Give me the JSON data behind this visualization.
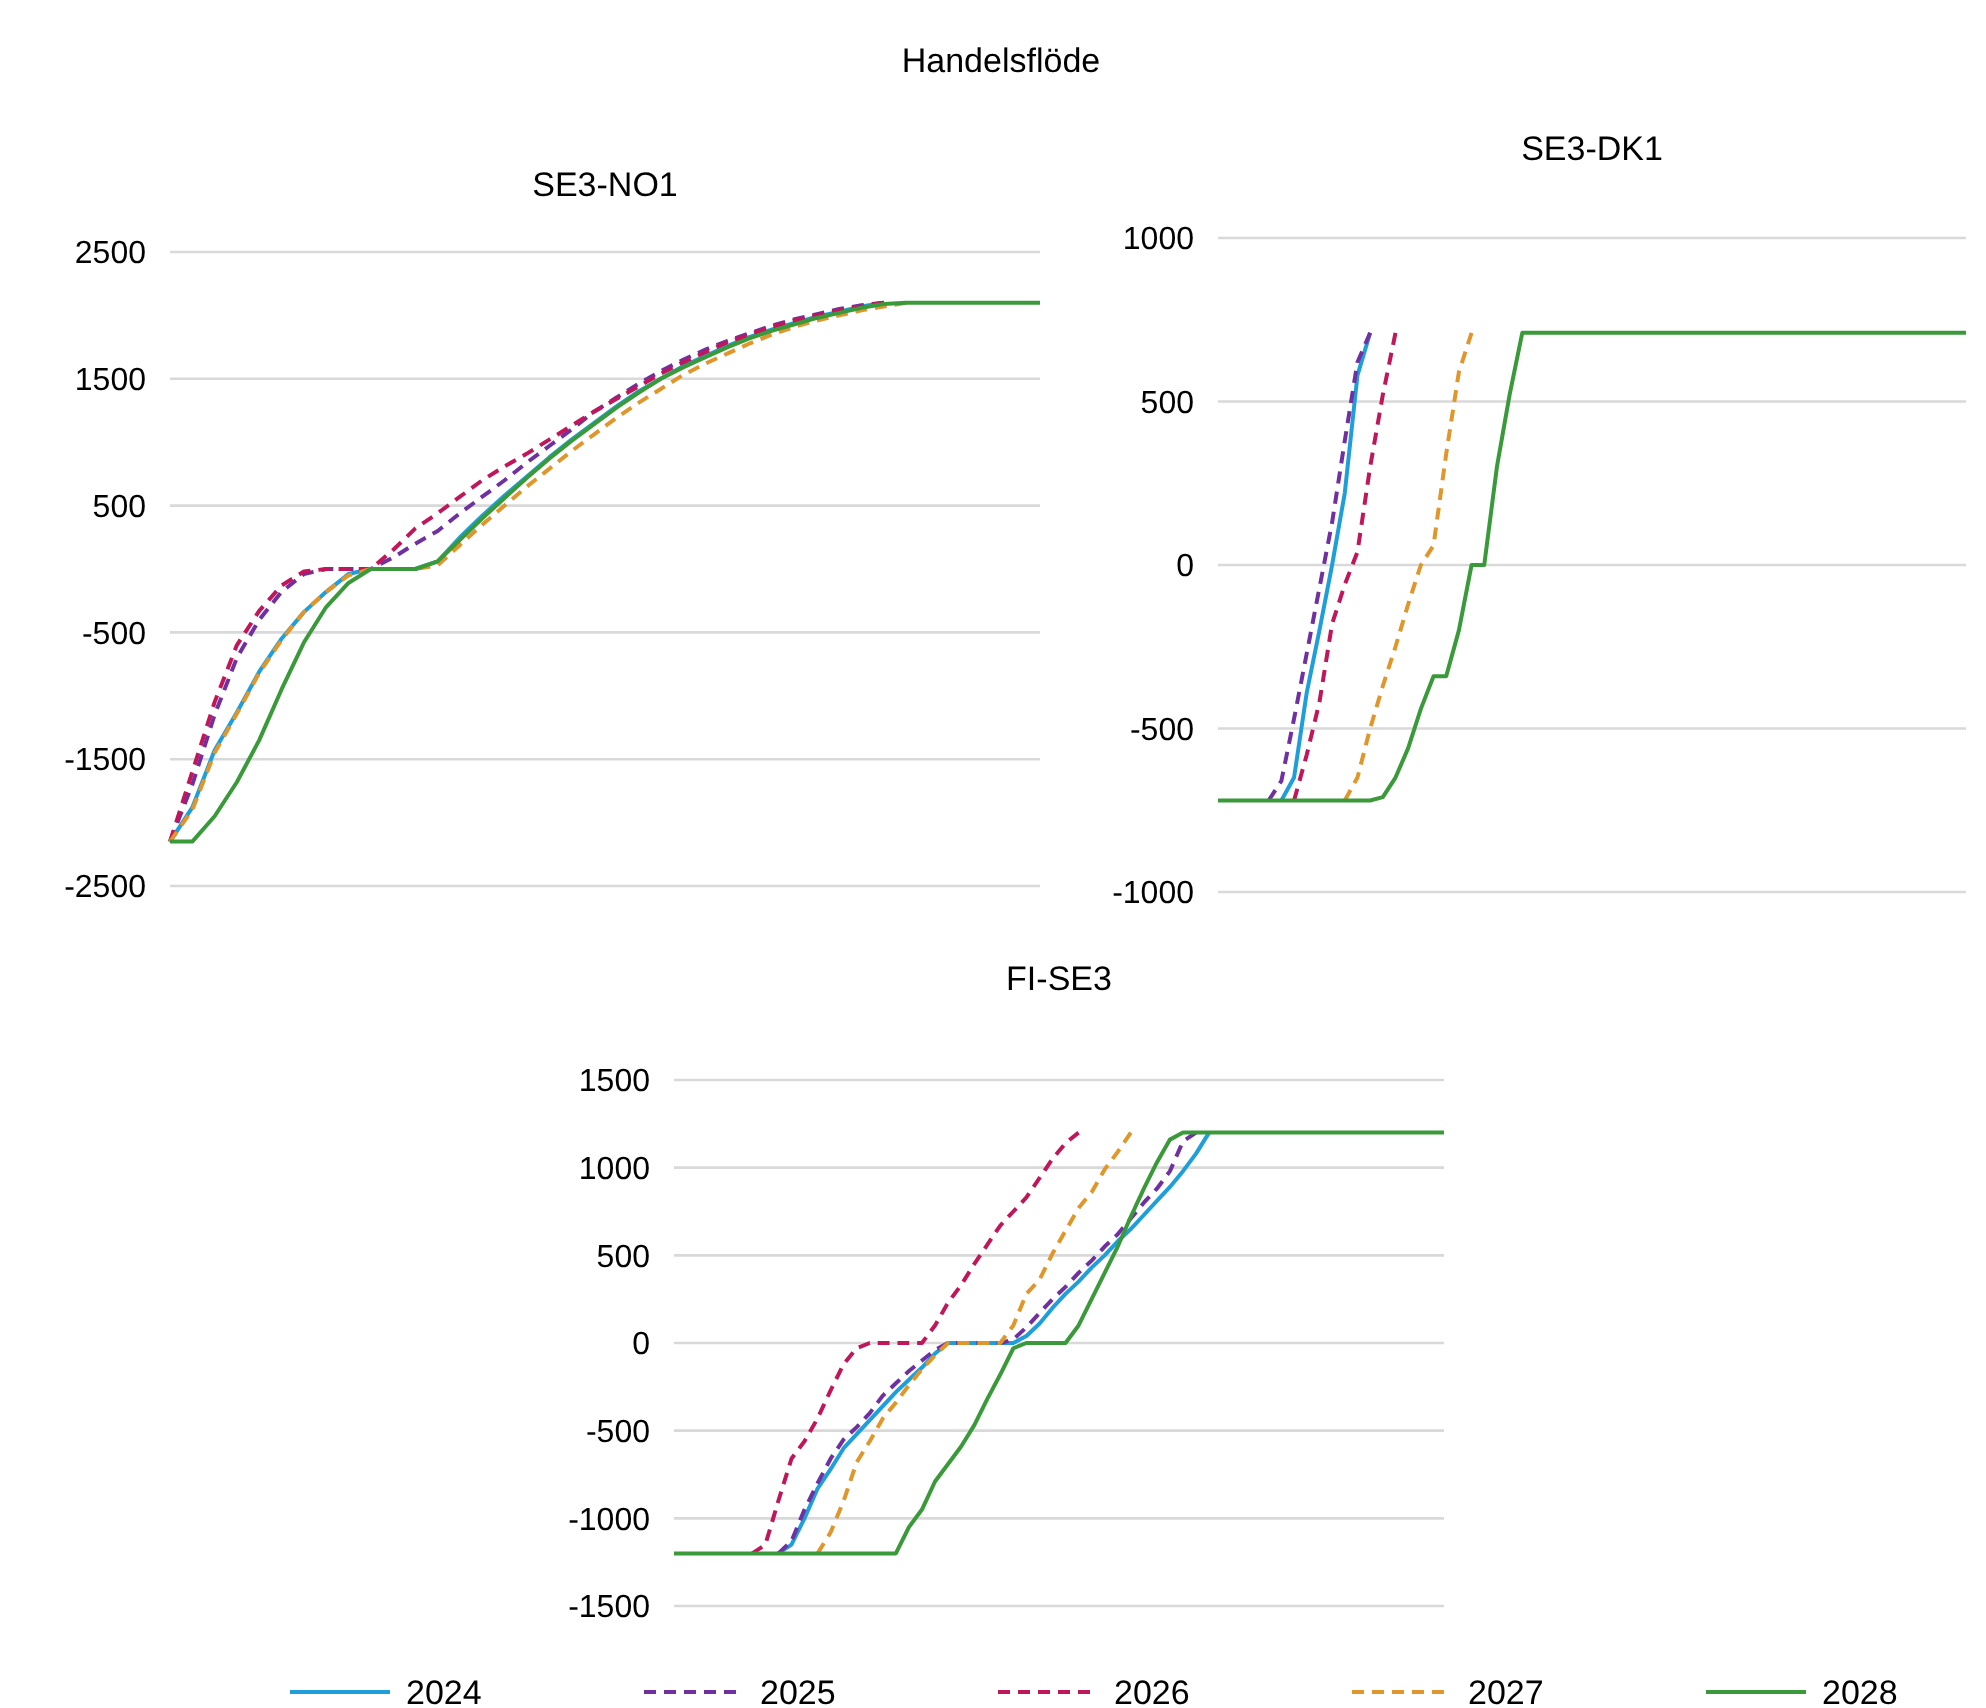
{
  "chart_data": [
    {
      "type": "line",
      "title": "SE3-NO1",
      "annotations": [
        "Handelsflöde"
      ],
      "categories": [
        null,
        null,
        null,
        null,
        null,
        null,
        null,
        null,
        null,
        null,
        null,
        null,
        null,
        null,
        null,
        null,
        null,
        null,
        null,
        null,
        null,
        null,
        null,
        null,
        null,
        null,
        null,
        null,
        null,
        null,
        null,
        null,
        null,
        null,
        null,
        null,
        null,
        null,
        null,
        null
      ],
      "ylim": [
        -2500,
        2500
      ],
      "yticks": [
        -2500,
        -1500,
        -500,
        500,
        1500,
        2500
      ],
      "grid": "y",
      "tick_labels": "y",
      "legend": false,
      "series": [
        {
          "color": "#1f9fd9",
          "line_style": "solid",
          "values": [
            -2150,
            -1880,
            -1430,
            -1130,
            -810,
            -550,
            -340,
            -180,
            -40,
            0,
            0,
            0,
            60,
            250,
            420,
            580,
            730,
            880,
            1020,
            1150,
            1280,
            1400,
            1500,
            1600,
            1680,
            1760,
            1830,
            1890,
            1940,
            1990,
            2030,
            2070,
            2100,
            null,
            null,
            null,
            null,
            null,
            null,
            null
          ]
        },
        {
          "color": "#7030a0",
          "line_style": "dashed",
          "values": [
            -2150,
            -1700,
            -1150,
            -700,
            -400,
            -180,
            -40,
            0,
            0,
            0,
            90,
            200,
            300,
            440,
            570,
            700,
            840,
            970,
            1100,
            1240,
            1350,
            1460,
            1560,
            1650,
            1730,
            1800,
            1860,
            1920,
            1970,
            2010,
            2050,
            2080,
            2100,
            null,
            null,
            null,
            null,
            null,
            null,
            null
          ]
        },
        {
          "color": "#c0175a",
          "line_style": "dashed",
          "values": [
            -2150,
            -1600,
            -1050,
            -600,
            -330,
            -130,
            -20,
            0,
            0,
            0,
            150,
            320,
            440,
            570,
            700,
            810,
            910,
            1020,
            1130,
            1240,
            1340,
            1440,
            1540,
            1630,
            1710,
            1790,
            1850,
            1910,
            1960,
            2000,
            2040,
            2070,
            2100,
            null,
            null,
            null,
            null,
            null,
            null,
            null
          ]
        },
        {
          "color": "#e0962a",
          "line_style": "dashed",
          "values": [
            -2150,
            -1900,
            -1450,
            -1140,
            -820,
            -560,
            -340,
            -180,
            -50,
            0,
            0,
            0,
            30,
            190,
            350,
            500,
            650,
            790,
            930,
            1060,
            1190,
            1310,
            1420,
            1530,
            1620,
            1700,
            1780,
            1850,
            1910,
            1960,
            2000,
            2040,
            2070,
            2100,
            null,
            null,
            null,
            null,
            null,
            null
          ]
        },
        {
          "color": "#3a9a3a",
          "line_style": "solid",
          "values": [
            -2150,
            -2150,
            -1950,
            -1680,
            -1350,
            -950,
            -580,
            -300,
            -110,
            0,
            0,
            0,
            60,
            230,
            400,
            560,
            720,
            870,
            1010,
            1140,
            1270,
            1390,
            1500,
            1590,
            1670,
            1750,
            1820,
            1880,
            1930,
            1980,
            2020,
            2060,
            2090,
            2100,
            2100,
            2100,
            2100,
            2100,
            2100,
            2100
          ]
        }
      ]
    },
    {
      "type": "line",
      "title": "SE3-DK1",
      "categories": [
        null,
        null,
        null,
        null,
        null,
        null,
        null,
        null,
        null,
        null,
        null,
        null,
        null,
        null,
        null,
        null,
        null,
        null,
        null,
        null,
        null,
        null,
        null,
        null,
        null,
        null,
        null,
        null,
        null,
        null,
        null,
        null,
        null,
        null,
        null,
        null,
        null,
        null,
        null,
        null,
        null,
        null,
        null,
        null,
        null,
        null,
        null,
        null,
        null,
        null,
        null,
        null,
        null,
        null,
        null,
        null,
        null,
        null,
        null,
        null
      ],
      "ylim": [
        -1000,
        1000
      ],
      "yticks": [
        -1000,
        -500,
        0,
        500,
        1000
      ],
      "grid": "y",
      "tick_labels": "y",
      "legend": false,
      "series": [
        {
          "color": "#1f9fd9",
          "line_style": "solid",
          "values": [
            null,
            null,
            null,
            null,
            null,
            -720,
            -650,
            -390,
            -200,
            0,
            220,
            580,
            710,
            null,
            null,
            null,
            null,
            null,
            null,
            null,
            null,
            null,
            null,
            null,
            null,
            null,
            null,
            null,
            null,
            null,
            null,
            null,
            null,
            null,
            null,
            null,
            null,
            null,
            null,
            null,
            null,
            null,
            null,
            null,
            null,
            null,
            null,
            null,
            null,
            null,
            null,
            null,
            null,
            null,
            null,
            null,
            null,
            null,
            null,
            null
          ]
        },
        {
          "color": "#7030a0",
          "line_style": "dashed",
          "values": [
            null,
            null,
            null,
            null,
            -720,
            -660,
            -470,
            -270,
            -70,
            130,
            380,
            620,
            710,
            null,
            null,
            null,
            null,
            null,
            null,
            null,
            null,
            null,
            null,
            null,
            null,
            null,
            null,
            null,
            null,
            null,
            null,
            null,
            null,
            null,
            null,
            null,
            null,
            null,
            null,
            null,
            null,
            null,
            null,
            null,
            null,
            null,
            null,
            null,
            null,
            null,
            null,
            null,
            null,
            null,
            null,
            null,
            null,
            null,
            null,
            null
          ]
        },
        {
          "color": "#c0175a",
          "line_style": "dashed",
          "values": [
            null,
            null,
            null,
            null,
            null,
            null,
            -720,
            -580,
            -420,
            -180,
            -60,
            40,
            300,
            520,
            710,
            null,
            null,
            null,
            null,
            null,
            null,
            null,
            null,
            null,
            null,
            null,
            null,
            null,
            null,
            null,
            null,
            null,
            null,
            null,
            null,
            null,
            null,
            null,
            null,
            null,
            null,
            null,
            null,
            null,
            null,
            null,
            null,
            null,
            null,
            null,
            null,
            null,
            null,
            null,
            null,
            null,
            null,
            null,
            null,
            null
          ]
        },
        {
          "color": "#e0962a",
          "line_style": "dashed",
          "values": [
            null,
            null,
            null,
            null,
            null,
            null,
            null,
            null,
            null,
            null,
            -720,
            -650,
            -500,
            -370,
            -250,
            -120,
            0,
            60,
            340,
            590,
            710,
            null,
            null,
            null,
            null,
            null,
            null,
            null,
            null,
            null,
            null,
            null,
            null,
            null,
            null,
            null,
            null,
            null,
            null,
            null,
            null,
            null,
            null,
            null,
            null,
            null,
            null,
            null,
            null,
            null,
            null,
            null,
            null,
            null,
            null,
            null,
            null,
            null,
            null,
            null
          ]
        },
        {
          "color": "#3a9a3a",
          "line_style": "solid",
          "values": [
            -720,
            -720,
            -720,
            -720,
            -720,
            -720,
            -720,
            -720,
            -720,
            -720,
            -720,
            -720,
            -720,
            -710,
            -650,
            -560,
            -440,
            -340,
            -340,
            -200,
            0,
            0,
            300,
            520,
            710,
            710,
            710,
            710,
            710,
            710,
            710,
            710,
            710,
            710,
            710,
            710,
            710,
            710,
            710,
            710,
            710,
            710,
            710,
            710,
            710,
            710,
            710,
            710,
            710,
            710,
            710,
            710,
            710,
            710,
            710,
            710,
            710,
            710,
            710,
            710
          ]
        }
      ]
    },
    {
      "type": "line",
      "title": "FI-SE3",
      "categories": [
        null,
        null,
        null,
        null,
        null,
        null,
        null,
        null,
        null,
        null,
        null,
        null,
        null,
        null,
        null,
        null,
        null,
        null,
        null,
        null,
        null,
        null,
        null,
        null,
        null,
        null,
        null,
        null,
        null,
        null,
        null,
        null,
        null,
        null,
        null,
        null,
        null,
        null,
        null,
        null,
        null,
        null,
        null,
        null,
        null,
        null,
        null,
        null,
        null,
        null,
        null,
        null,
        null,
        null,
        null,
        null,
        null,
        null,
        null,
        null
      ],
      "ylim": [
        -1500,
        1500
      ],
      "yticks": [
        -1500,
        -1000,
        -500,
        0,
        500,
        1000,
        1500
      ],
      "grid": "y",
      "tick_labels": "y",
      "legend": "bottom",
      "series": [
        {
          "name": "2024",
          "color": "#1f9fd9",
          "line_style": "solid",
          "values": [
            null,
            null,
            null,
            null,
            null,
            null,
            null,
            null,
            -1200,
            -1150,
            -1000,
            -830,
            -720,
            -600,
            -520,
            -440,
            -360,
            -280,
            -210,
            -140,
            -60,
            0,
            0,
            0,
            0,
            0,
            0,
            40,
            110,
            200,
            280,
            350,
            430,
            500,
            580,
            650,
            730,
            810,
            890,
            980,
            1080,
            1200,
            null,
            null,
            null,
            null,
            null,
            null,
            null,
            null,
            null,
            null,
            null,
            null,
            null,
            null,
            null,
            null,
            null,
            null
          ]
        },
        {
          "name": "2025",
          "color": "#7030a0",
          "line_style": "dashed",
          "values": [
            null,
            null,
            null,
            null,
            null,
            null,
            null,
            null,
            -1200,
            -1130,
            -950,
            -800,
            -660,
            -550,
            -480,
            -400,
            -300,
            -230,
            -160,
            -100,
            -40,
            0,
            0,
            0,
            0,
            0,
            20,
            90,
            170,
            250,
            320,
            400,
            470,
            550,
            620,
            710,
            800,
            880,
            980,
            1150,
            1200,
            null,
            null,
            null,
            null,
            null,
            null,
            null,
            null,
            null,
            null,
            null,
            null,
            null,
            null,
            null,
            null,
            null,
            null,
            null
          ]
        },
        {
          "name": "2026",
          "color": "#c0175a",
          "line_style": "dashed",
          "values": [
            null,
            null,
            null,
            null,
            null,
            null,
            -1200,
            -1150,
            -900,
            -660,
            -560,
            -430,
            -270,
            -120,
            -30,
            0,
            0,
            0,
            0,
            0,
            100,
            230,
            330,
            450,
            560,
            670,
            750,
            830,
            940,
            1050,
            1140,
            1200,
            null,
            null,
            null,
            null,
            null,
            null,
            null,
            null,
            null,
            null,
            null,
            null,
            null,
            null,
            null,
            null,
            null,
            null,
            null,
            null,
            null,
            null,
            null,
            null,
            null,
            null,
            null,
            null
          ]
        },
        {
          "name": "2027",
          "color": "#e0962a",
          "line_style": "dashed",
          "values": [
            null,
            null,
            null,
            null,
            null,
            null,
            null,
            null,
            null,
            null,
            null,
            -1200,
            -1080,
            -900,
            -680,
            -560,
            -430,
            -340,
            -240,
            -150,
            -70,
            0,
            0,
            0,
            0,
            0,
            100,
            280,
            360,
            510,
            640,
            770,
            860,
            990,
            1090,
            1200,
            null,
            null,
            null,
            null,
            null,
            null,
            null,
            null,
            null,
            null,
            null,
            null,
            null,
            null,
            null,
            null,
            null,
            null,
            null,
            null,
            null,
            null,
            null,
            null
          ]
        },
        {
          "name": "2028",
          "color": "#3a9a3a",
          "line_style": "solid",
          "values": [
            -1200,
            -1200,
            -1200,
            -1200,
            -1200,
            -1200,
            -1200,
            -1200,
            -1200,
            -1200,
            -1200,
            -1200,
            -1200,
            -1200,
            -1200,
            -1200,
            -1200,
            -1200,
            -1050,
            -950,
            -790,
            -690,
            -590,
            -470,
            -320,
            -180,
            -30,
            0,
            0,
            0,
            0,
            100,
            250,
            400,
            550,
            720,
            880,
            1030,
            1160,
            1200,
            1200,
            1200,
            1200,
            1200,
            1200,
            1200,
            1200,
            1200,
            1200,
            1200,
            1200,
            1200,
            1200,
            1200,
            1200,
            1200,
            1200,
            1200,
            1200,
            1200
          ]
        }
      ]
    }
  ]
}
